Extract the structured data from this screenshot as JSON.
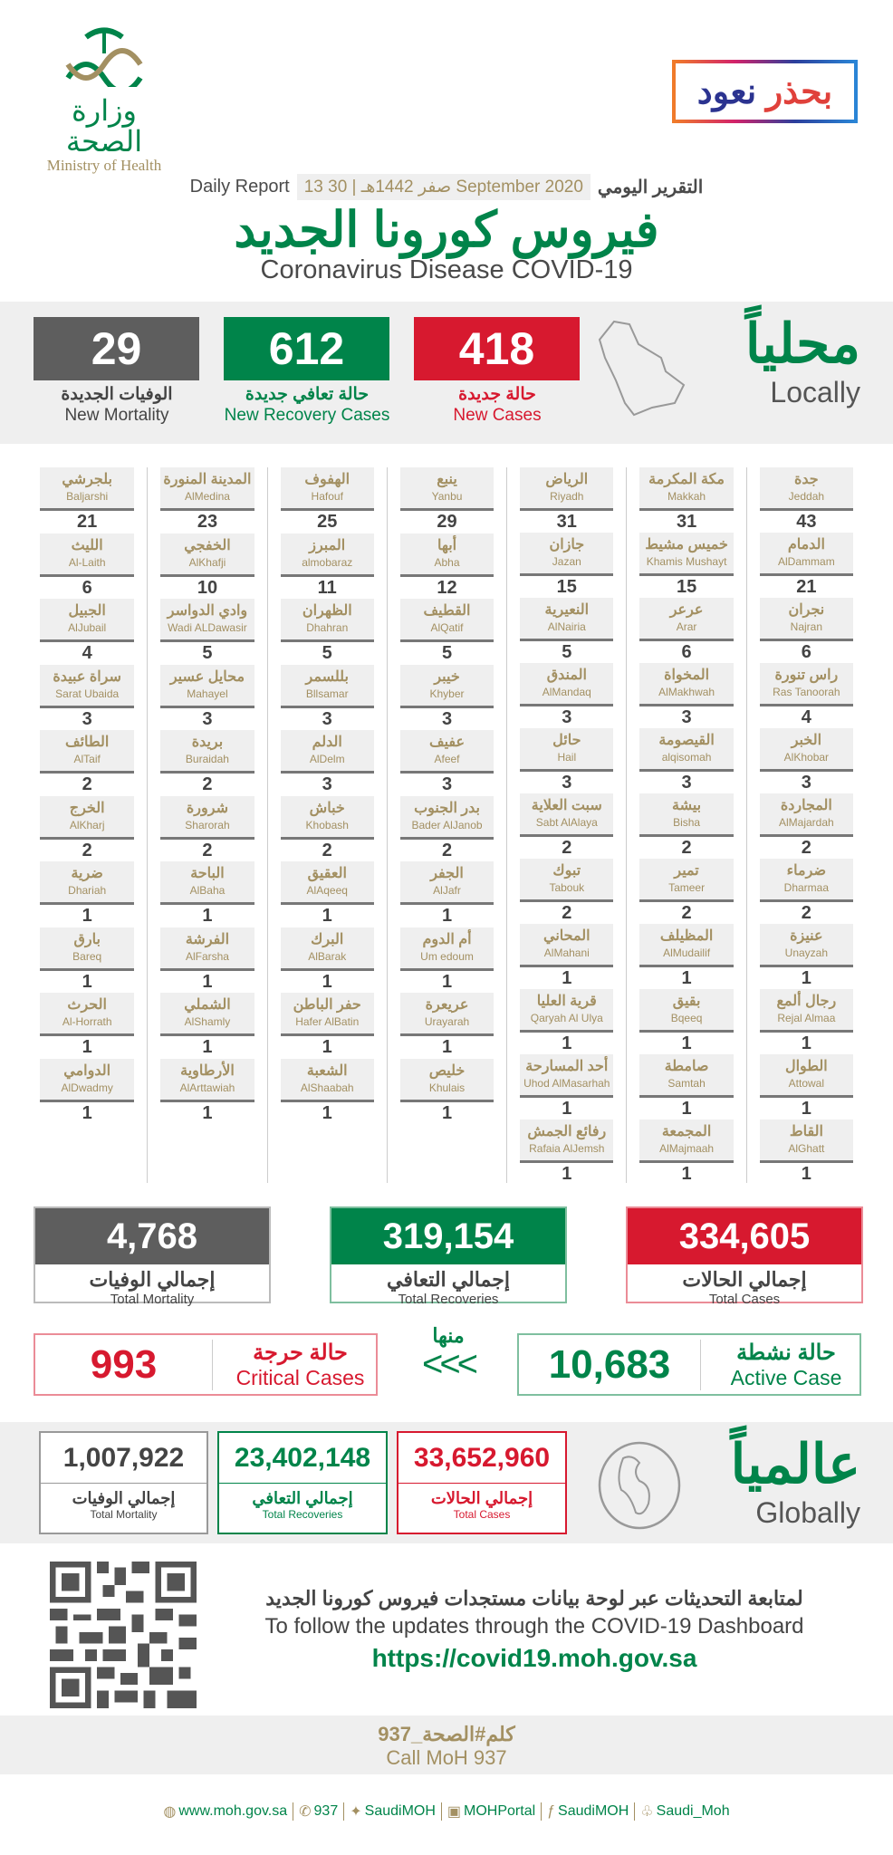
{
  "header": {
    "logo_ar": "وزارة الصحة",
    "logo_en": "Ministry of Health",
    "campaign_word1": "نعود",
    "campaign_word2": "بحذر",
    "daily_report_ar": "التقرير اليومي",
    "date": "13 صفر 1442هـ | 30 September 2020",
    "daily_report_en": "Daily Report",
    "title_ar": "فيروس كورونا الجديد",
    "title_en": "Coronavirus Disease COVID-19"
  },
  "colors": {
    "red": "#d7192f",
    "green": "#00844a",
    "gray": "#5e5e5e",
    "gold": "#a39062"
  },
  "locally": {
    "title_ar": "محلياً",
    "title_en": "Locally",
    "new_cases": {
      "value": "418",
      "ar": "حالة جديدة",
      "en": "New Cases"
    },
    "new_recoveries": {
      "value": "612",
      "ar": "حالة تعافي جديدة",
      "en": "New Recovery Cases"
    },
    "new_mortality": {
      "value": "29",
      "ar": "الوفيات الجديدة",
      "en": "New Mortality"
    }
  },
  "cities": [
    [
      [
        "جدة",
        "Jeddah",
        "43"
      ],
      [
        "الدمام",
        "AlDammam",
        "21"
      ],
      [
        "نجران",
        "Najran",
        "6"
      ],
      [
        "راس تنورة",
        "Ras Tanoorah",
        "4"
      ],
      [
        "الخبر",
        "AlKhobar",
        "3"
      ],
      [
        "المجاردة",
        "AlMajardah",
        "2"
      ],
      [
        "ضرماء",
        "Dharmaa",
        "2"
      ],
      [
        "عنيزة",
        "Unayzah",
        "1"
      ],
      [
        "رجال ألمع",
        "Rejal Almaa",
        "1"
      ],
      [
        "الطوال",
        "Attowal",
        "1"
      ],
      [
        "القاط",
        "AlGhatt",
        "1"
      ]
    ],
    [
      [
        "مكة المكرمة",
        "Makkah",
        "31"
      ],
      [
        "خميس مشيط",
        "Khamis Mushayt",
        "15"
      ],
      [
        "عرعر",
        "Arar",
        "6"
      ],
      [
        "المخواة",
        "AlMakhwah",
        "3"
      ],
      [
        "القيصومة",
        "alqisomah",
        "3"
      ],
      [
        "بيشة",
        "Bisha",
        "2"
      ],
      [
        "تمير",
        "Tameer",
        "2"
      ],
      [
        "المظيلف",
        "AlMudailif",
        "1"
      ],
      [
        "بقيق",
        "Bqeeq",
        "1"
      ],
      [
        "صامطة",
        "Samtah",
        "1"
      ],
      [
        "المجمعة",
        "AlMajmaah",
        "1"
      ]
    ],
    [
      [
        "الرياض",
        "Riyadh",
        "31"
      ],
      [
        "جازان",
        "Jazan",
        "15"
      ],
      [
        "النعيرية",
        "AlNairia",
        "5"
      ],
      [
        "المندق",
        "AlMandaq",
        "3"
      ],
      [
        "حائل",
        "Hail",
        "3"
      ],
      [
        "سبت العلاية",
        "Sabt AlAlaya",
        "2"
      ],
      [
        "تبوك",
        "Tabouk",
        "2"
      ],
      [
        "المحاني",
        "AlMahani",
        "1"
      ],
      [
        "قرية العليا",
        "Qaryah Al Ulya",
        "1"
      ],
      [
        "أحد المسارحة",
        "Uhod AlMasarhah",
        "1"
      ],
      [
        "رفائع الجمش",
        "Rafaia AlJemsh",
        "1"
      ]
    ],
    [
      [
        "ينبع",
        "Yanbu",
        "29"
      ],
      [
        "أبها",
        "Abha",
        "12"
      ],
      [
        "القطيف",
        "AlQatif",
        "5"
      ],
      [
        "خيبر",
        "Khyber",
        "3"
      ],
      [
        "عفيف",
        "Afeef",
        "3"
      ],
      [
        "بدر الجنوب",
        "Bader AlJanob",
        "2"
      ],
      [
        "الجفر",
        "AlJafr",
        "1"
      ],
      [
        "أم الدوم",
        "Um edoum",
        "1"
      ],
      [
        "عريعرة",
        "Urayarah",
        "1"
      ],
      [
        "خليص",
        "Khulais",
        "1"
      ]
    ],
    [
      [
        "الهفوف",
        "Hafouf",
        "25"
      ],
      [
        "المبرز",
        "almobaraz",
        "11"
      ],
      [
        "الظهران",
        "Dhahran",
        "5"
      ],
      [
        "بللسمر",
        "Bllsamar",
        "3"
      ],
      [
        "الدلم",
        "AlDelm",
        "3"
      ],
      [
        "خباش",
        "Khobash",
        "2"
      ],
      [
        "العقيق",
        "AlAqeeq",
        "1"
      ],
      [
        "البرك",
        "AlBarak",
        "1"
      ],
      [
        "حفر الباطن",
        "Hafer AlBatin",
        "1"
      ],
      [
        "الشعبة",
        "AlShaabah",
        "1"
      ]
    ],
    [
      [
        "المدينة المنورة",
        "AlMedina",
        "23"
      ],
      [
        "الخفجي",
        "AlKhafji",
        "10"
      ],
      [
        "وادي الدواسر",
        "Wadi ALDawasir",
        "5"
      ],
      [
        "محايل عسير",
        "Mahayel",
        "3"
      ],
      [
        "بريدة",
        "Buraidah",
        "2"
      ],
      [
        "شرورة",
        "Sharorah",
        "2"
      ],
      [
        "الباحة",
        "AlBaha",
        "1"
      ],
      [
        "الفرشة",
        "AlFarsha",
        "1"
      ],
      [
        "الشملي",
        "AlShamly",
        "1"
      ],
      [
        "الأرطاوية",
        "AlArttawiah",
        "1"
      ]
    ],
    [
      [
        "بلجرشي",
        "Baljarshi",
        "21"
      ],
      [
        "الليث",
        "Al-Laith",
        "6"
      ],
      [
        "الجبيل",
        "AlJubail",
        "4"
      ],
      [
        "سراة عبيدة",
        "Sarat Ubaida",
        "3"
      ],
      [
        "الطائف",
        "AlTaif",
        "2"
      ],
      [
        "الخرج",
        "AlKharj",
        "2"
      ],
      [
        "ضرية",
        "Dhariah",
        "1"
      ],
      [
        "بارق",
        "Bareq",
        "1"
      ],
      [
        "الحرث",
        "Al-Horrath",
        "1"
      ],
      [
        "الدوامي",
        "AlDwadmy",
        "1"
      ]
    ]
  ],
  "totals": {
    "cases": {
      "value": "334,605",
      "ar": "إجمالي الحالات",
      "en": "Total Cases"
    },
    "recoveries": {
      "value": "319,154",
      "ar": "إجمالي التعافي",
      "en": "Total Recoveries"
    },
    "mortality": {
      "value": "4,768",
      "ar": "إجمالي الوفيات",
      "en": "Total Mortality"
    },
    "of_them": "منها",
    "arrows": "<<<",
    "active": {
      "value": "10,683",
      "ar": "حالة نشطة",
      "en": "Active Case"
    },
    "critical": {
      "value": "993",
      "ar": "حالة حرجة",
      "en": "Critical Cases"
    }
  },
  "globally": {
    "title_ar": "عالمياً",
    "title_en": "Globally",
    "cases": {
      "value": "33,652,960",
      "ar": "إجمالي الحالات",
      "en": "Total Cases"
    },
    "recoveries": {
      "value": "23,402,148",
      "ar": "إجمالي التعافي",
      "en": "Total Recoveries"
    },
    "mortality": {
      "value": "1,007,922",
      "ar": "إجمالي الوفيات",
      "en": "Total Mortality"
    }
  },
  "dashboard": {
    "text_ar": "لمتابعة التحديثات عبر لوحة بيانات مستجدات فيروس كورونا الجديد",
    "text_en": "To follow the updates through the COVID-19 Dashboard",
    "url": "https://covid19.moh.gov.sa"
  },
  "call": {
    "ar": "كلم#الصحة_937",
    "en": "Call MoH 937"
  },
  "social": [
    {
      "icon": "globe-icon",
      "glyph": "◍",
      "label": "www.moh.gov.sa"
    },
    {
      "icon": "phone-icon",
      "glyph": "✆",
      "label": "937"
    },
    {
      "icon": "twitter-icon",
      "glyph": "✦",
      "label": "SaudiMOH"
    },
    {
      "icon": "youtube-icon",
      "glyph": "▣",
      "label": "MOHPortal"
    },
    {
      "icon": "facebook-icon",
      "glyph": "ƒ",
      "label": "SaudiMOH"
    },
    {
      "icon": "snapchat-icon",
      "glyph": "♧",
      "label": "Saudi_Moh"
    }
  ]
}
